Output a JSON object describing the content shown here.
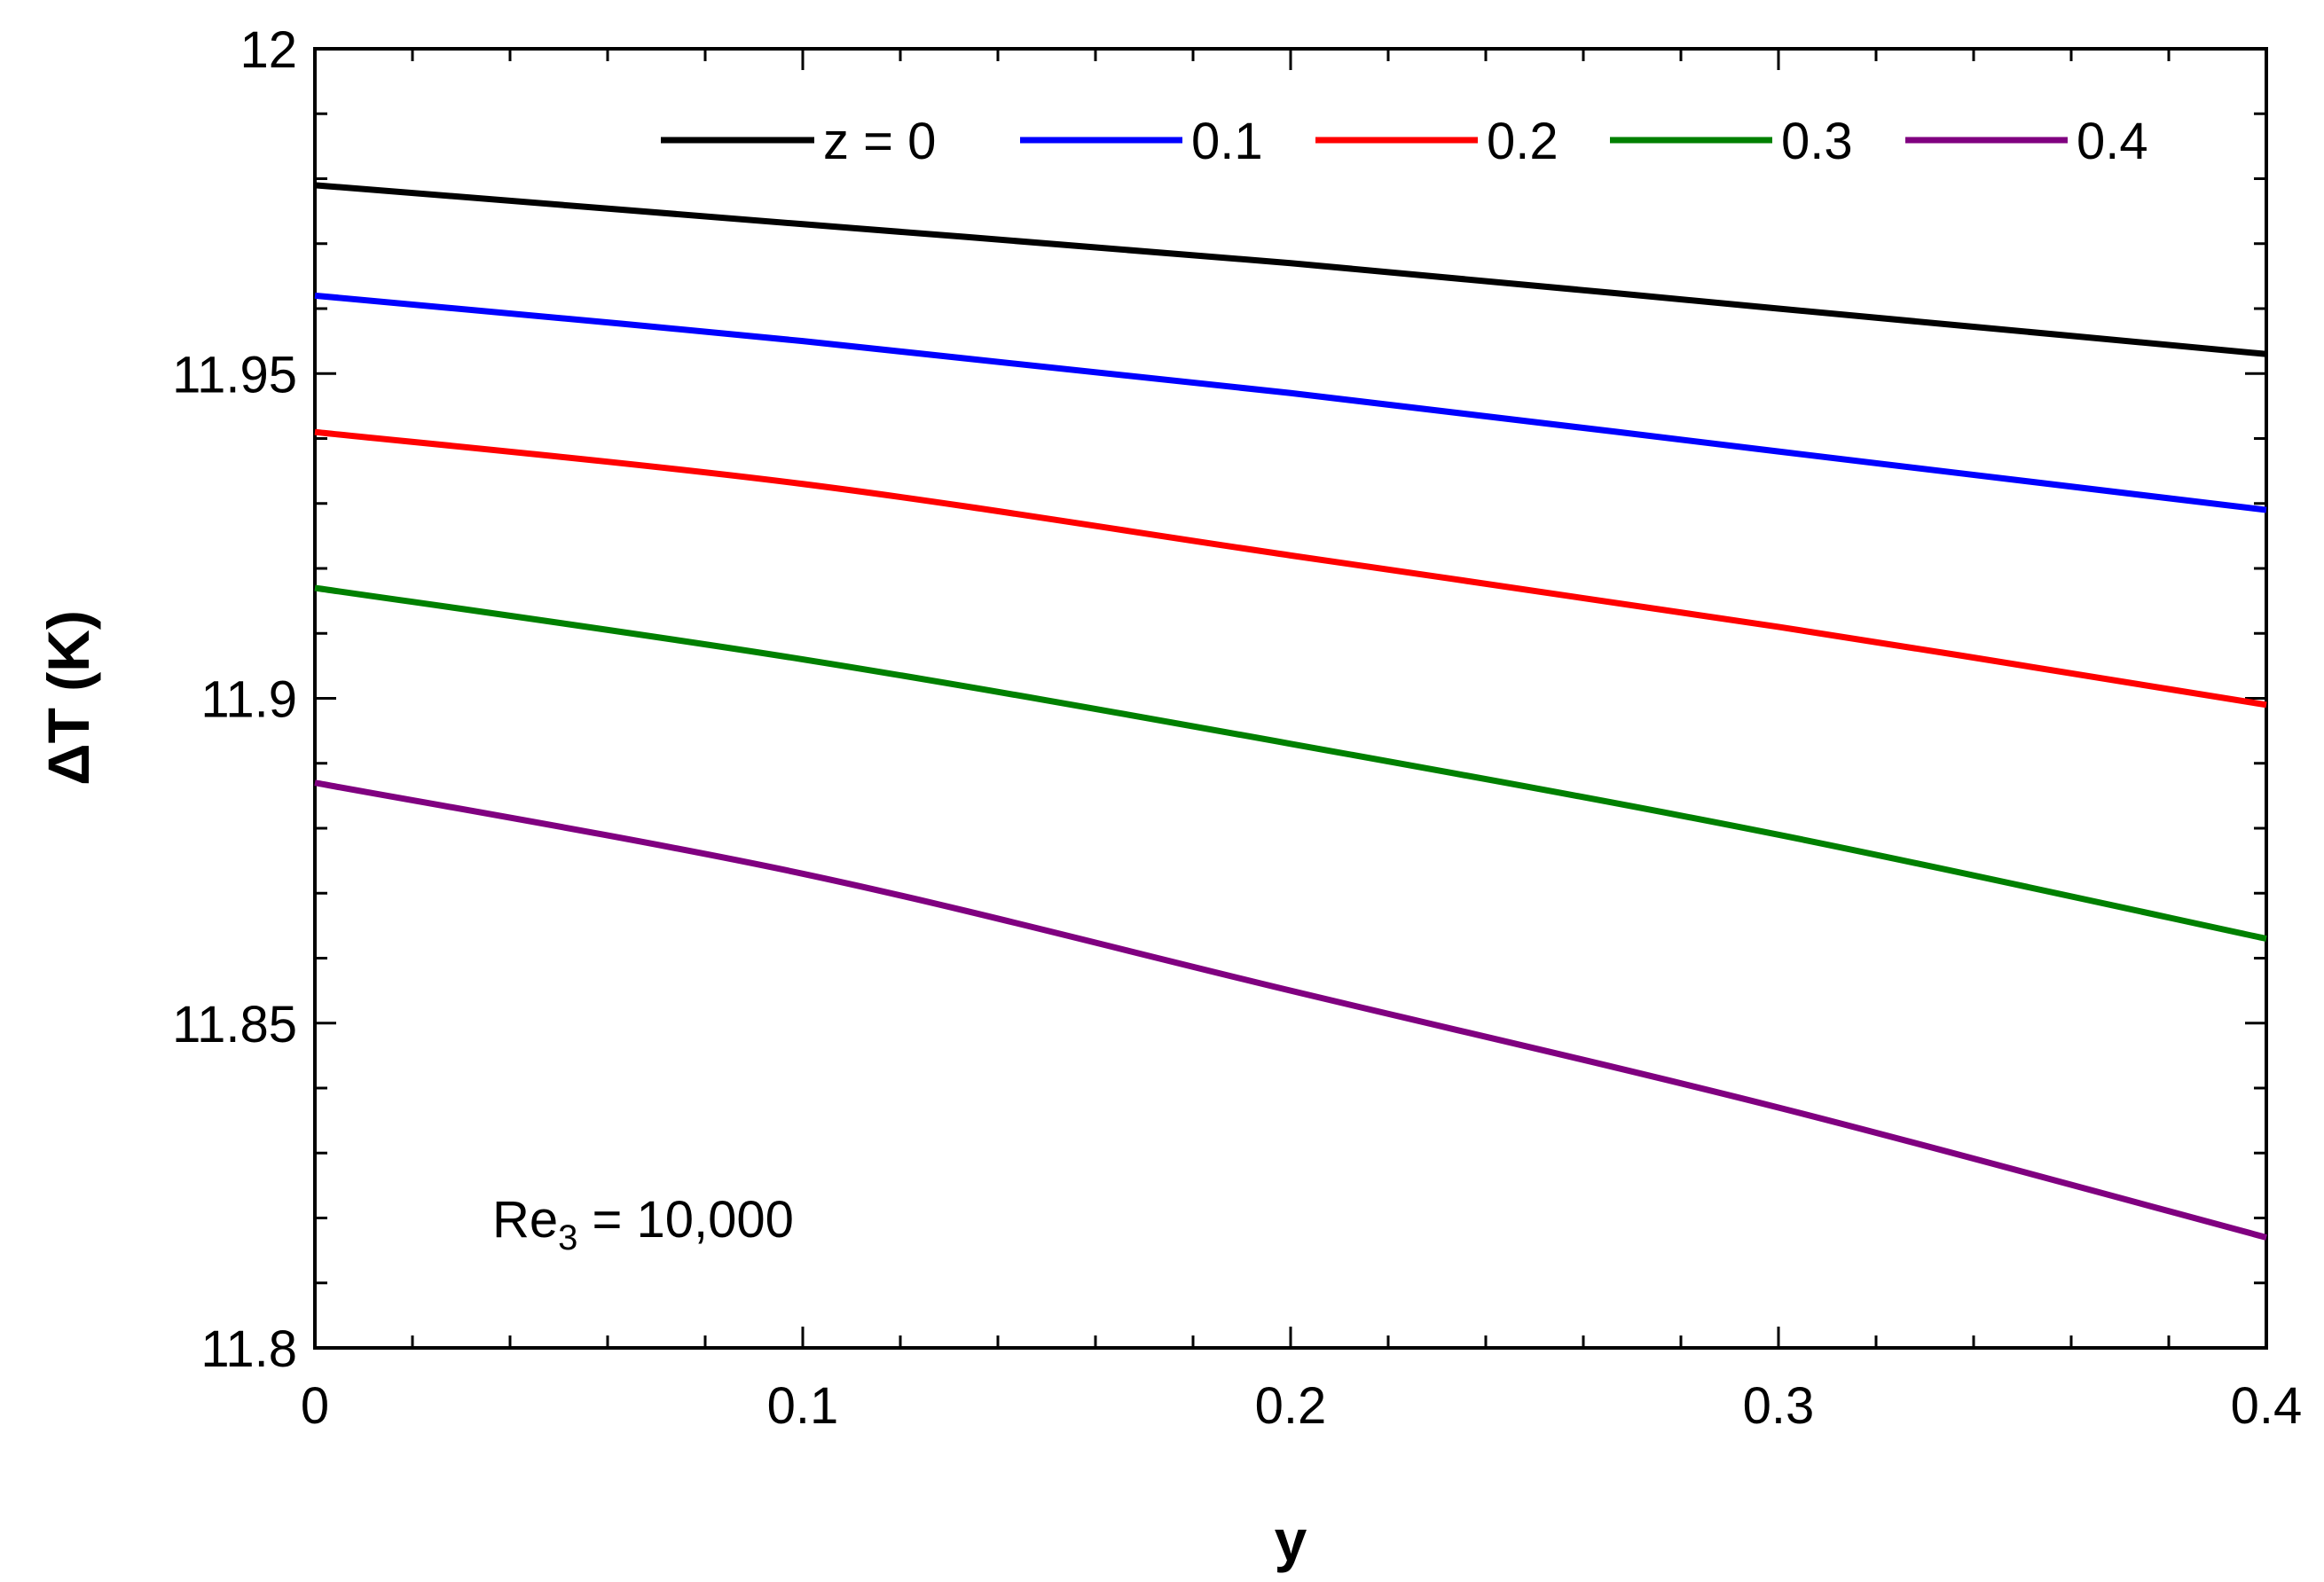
{
  "chart_data": {
    "type": "line",
    "title": "",
    "xlabel": "y",
    "ylabel": "ΔT (K)",
    "xlim": [
      0,
      0.4
    ],
    "ylim": [
      11.8,
      12.0
    ],
    "xticks": [
      0,
      0.1,
      0.2,
      0.3,
      0.4
    ],
    "xtick_labels": [
      "0",
      "0.1",
      "0.2",
      "0.3",
      "0.4"
    ],
    "yticks": [
      11.8,
      11.85,
      11.9,
      11.95,
      12.0
    ],
    "ytick_labels": [
      "11.8",
      "11.85",
      "11.9",
      "11.95",
      "12"
    ],
    "x_minor_step": 0.02,
    "y_minor_step": 0.01,
    "grid": false,
    "legend_position": "top",
    "annotation": {
      "main": "Re",
      "sub": "3",
      "rest": " = 10,000",
      "position": "bottom-left"
    },
    "x": [
      0,
      0.1,
      0.2,
      0.3,
      0.4
    ],
    "series": [
      {
        "name": "z = 0",
        "color": "#000000",
        "values": [
          11.979,
          11.973,
          11.967,
          11.96,
          11.953
        ]
      },
      {
        "name": "0.1",
        "color": "#0000ff",
        "values": [
          11.962,
          11.955,
          11.947,
          11.938,
          11.929
        ]
      },
      {
        "name": "0.2",
        "color": "#ff0000",
        "values": [
          11.941,
          11.933,
          11.922,
          11.911,
          11.899
        ]
      },
      {
        "name": "0.3",
        "color": "#008000",
        "values": [
          11.917,
          11.906,
          11.893,
          11.879,
          11.863
        ]
      },
      {
        "name": "0.4",
        "color": "#800080",
        "values": [
          11.887,
          11.873,
          11.855,
          11.837,
          11.817
        ]
      }
    ]
  }
}
